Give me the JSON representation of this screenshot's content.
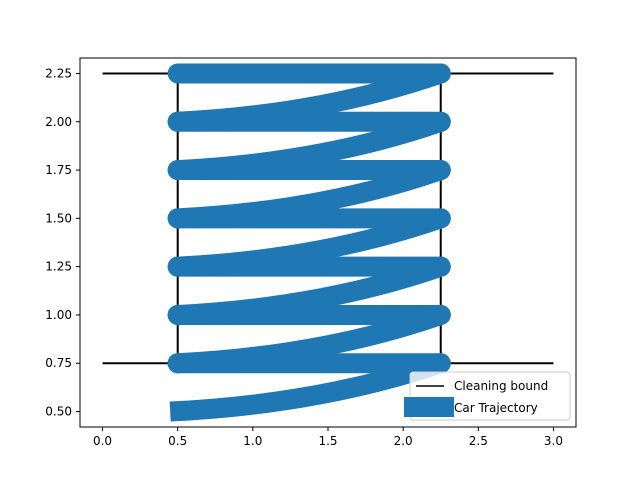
{
  "chart_data": {
    "type": "line",
    "xlim": [
      -0.15,
      3.15
    ],
    "ylim": [
      0.42,
      2.33
    ],
    "x_ticks": [
      0.0,
      0.5,
      1.0,
      1.5,
      2.0,
      2.5,
      3.0
    ],
    "y_ticks": [
      0.5,
      0.75,
      1.0,
      1.25,
      1.5,
      1.75,
      2.0,
      2.25
    ],
    "x_tick_labels": [
      "0.0",
      "0.5",
      "1.0",
      "1.5",
      "2.0",
      "2.5",
      "3.0"
    ],
    "y_tick_labels": [
      "0.50",
      "0.75",
      "1.00",
      "1.25",
      "1.50",
      "1.75",
      "2.00",
      "2.25"
    ],
    "grid": false,
    "legend_position": "lower-right",
    "series": [
      {
        "name": "Cleaning bound",
        "color": "#000000",
        "style": "line",
        "segments": [
          [
            [
              0.0,
              0.75
            ],
            [
              3.0,
              0.75
            ]
          ],
          [
            [
              0.0,
              2.25
            ],
            [
              3.0,
              2.25
            ]
          ],
          [
            [
              0.5,
              0.75
            ],
            [
              0.5,
              2.25
            ]
          ],
          [
            [
              2.25,
              0.75
            ],
            [
              2.25,
              2.25
            ]
          ]
        ]
      },
      {
        "name": "Car Trajectory",
        "color": "#1f77b4",
        "style": "thick-line",
        "points": [
          [
            0.45,
            0.5
          ],
          [
            2.25,
            0.75
          ],
          [
            0.5,
            0.75
          ],
          [
            2.25,
            1.0
          ],
          [
            0.5,
            1.0
          ],
          [
            2.25,
            1.25
          ],
          [
            0.5,
            1.25
          ],
          [
            2.25,
            1.5
          ],
          [
            0.5,
            1.5
          ],
          [
            2.25,
            1.75
          ],
          [
            0.5,
            1.75
          ],
          [
            2.25,
            2.0
          ],
          [
            0.5,
            2.0
          ],
          [
            2.25,
            2.25
          ],
          [
            0.5,
            2.25
          ]
        ]
      }
    ]
  }
}
